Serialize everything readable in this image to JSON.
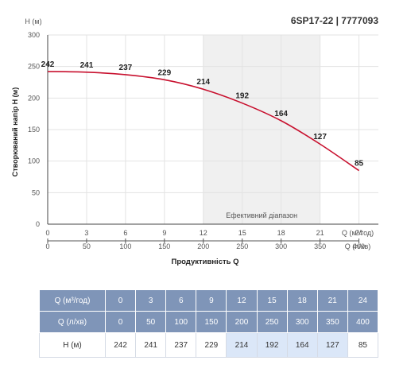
{
  "model": "6SP17-22 | 7777093",
  "colors": {
    "curve": "#c8102e",
    "table_header": "#7f95b8",
    "highlight": "#dbe7f8",
    "band": "#f0f0f0"
  },
  "chart_data": {
    "type": "line",
    "x": [
      0,
      3,
      6,
      9,
      12,
      15,
      18,
      21,
      24
    ],
    "x_secondary": [
      0,
      50,
      100,
      150,
      200,
      250,
      300,
      350,
      400
    ],
    "series": [
      {
        "values": [
          242,
          241,
          237,
          229,
          214,
          192,
          164,
          127,
          85
        ]
      }
    ],
    "ylabel": "Створюваний напір H (м)",
    "ylabel_top": "H (м)",
    "xlabel": "Продуктивність Q",
    "x_unit": "Q (м³/год)",
    "x2_unit": "Q (л/хв)",
    "xlim": [
      0,
      25.5
    ],
    "ylim": [
      0,
      300
    ],
    "yticks": [
      0,
      50,
      100,
      150,
      200,
      250,
      300
    ],
    "band": {
      "x_from": 12,
      "x_to": 21,
      "label": "Ефективний діапазон"
    },
    "grid": true
  },
  "table": {
    "rows": [
      {
        "label": "Q (м³/год)",
        "values": [
          "0",
          "3",
          "6",
          "9",
          "12",
          "15",
          "18",
          "21",
          "24"
        ]
      },
      {
        "label": "Q (л/хв)",
        "values": [
          "0",
          "50",
          "100",
          "150",
          "200",
          "250",
          "300",
          "350",
          "400"
        ]
      },
      {
        "label": "H (м)",
        "values": [
          "242",
          "241",
          "237",
          "229",
          "214",
          "192",
          "164",
          "127",
          "85"
        ]
      }
    ],
    "highlight_columns": [
      4,
      5,
      6,
      7
    ]
  }
}
